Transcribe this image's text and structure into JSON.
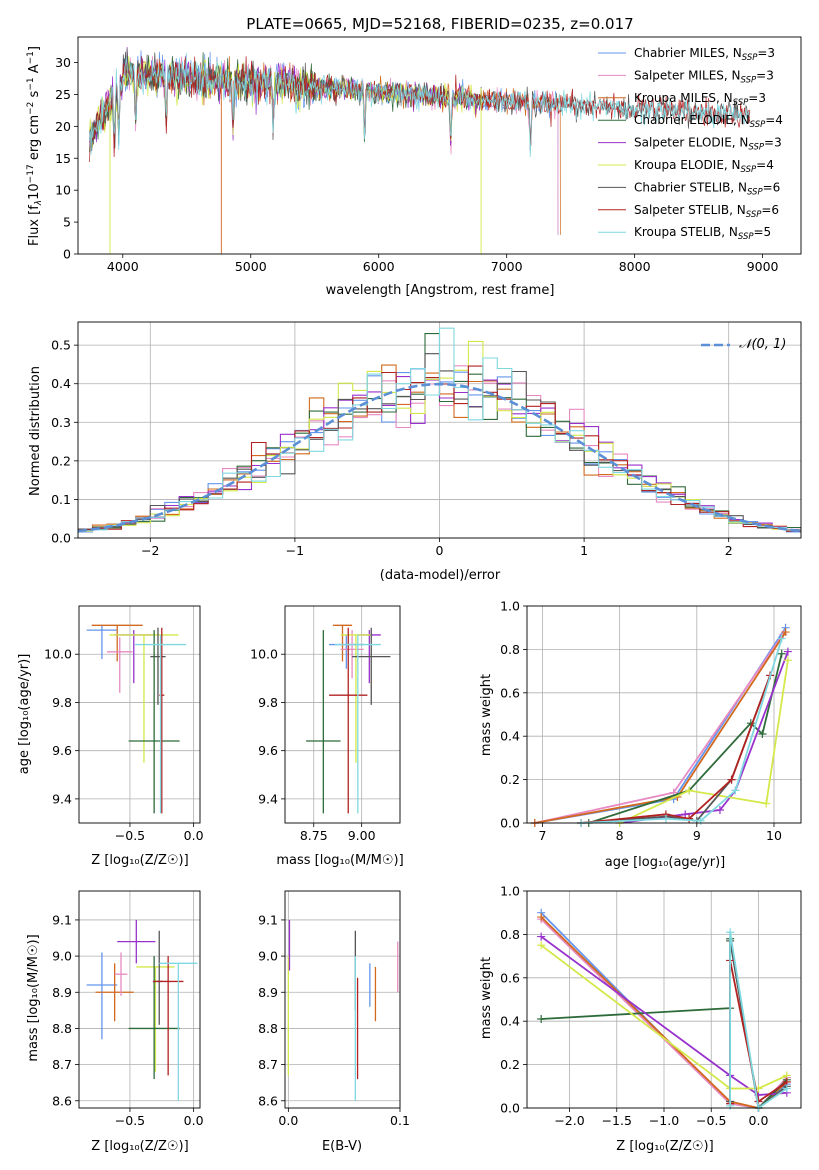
{
  "chart_data": [
    {
      "id": "spectrum",
      "type": "line",
      "title": "PLATE=0665, MJD=52168, FIBERID=0235, z=0.017",
      "xlabel": "wavelength [Angstrom, rest frame]",
      "ylabel": "Flux [f$_\\lambda$10$^{-17}$ erg cm$^{-2}$ s$^{-1}$ A$^{-1}$]",
      "ylabel_parts": {
        "a": "Flux [f",
        "b": "λ",
        "c": "10",
        "d": "−17",
        "e": " erg cm",
        "f": "−2",
        "g": " s",
        "h": "−1",
        "i": " A",
        "j": "−1",
        "k": "]"
      },
      "xlim": [
        3650,
        9300
      ],
      "ylim": [
        0,
        34
      ],
      "xticks": [
        4000,
        5000,
        6000,
        7000,
        8000,
        9000
      ],
      "yticks": [
        0,
        5,
        10,
        15,
        20,
        25,
        30
      ],
      "grid": false,
      "legend_position": "upper-right",
      "series": [
        {
          "name": "Chabrier MILES, NSSP=3",
          "label": "Chabrier MILES, N",
          "sub": "SSP",
          "suffix": "=3",
          "color": "#6495ed",
          "x_range": [
            3740,
            7400
          ]
        },
        {
          "name": "Salpeter MILES, NSSP=3",
          "label": "Salpeter MILES, N",
          "sub": "SSP",
          "suffix": "=3",
          "color": "#e78ac3",
          "x_range": [
            3740,
            7400
          ]
        },
        {
          "name": "Kroupa MILES, NSSP=3",
          "label": "Kroupa MILES, N",
          "sub": "SSP",
          "suffix": "=3",
          "color": "#d2691e",
          "x_range": [
            3740,
            7420
          ]
        },
        {
          "name": "Chabrier ELODIE, NSSP=4",
          "label": "Chabrier ELODIE, N",
          "sub": "SSP",
          "suffix": "=4",
          "color": "#2e6b3a",
          "x_range": [
            3740,
            6800
          ]
        },
        {
          "name": "Salpeter ELODIE, NSSP=3",
          "label": "Salpeter ELODIE, N",
          "sub": "SSP",
          "suffix": "=3",
          "color": "#9932cc",
          "x_range": [
            3740,
            6800
          ]
        },
        {
          "name": "Kroupa ELODIE, NSSP=4",
          "label": "Kroupa ELODIE, N",
          "sub": "SSP",
          "suffix": "=4",
          "color": "#d4e84a",
          "x_range": [
            3740,
            6800
          ]
        },
        {
          "name": "Chabrier STELIB, NSSP=6",
          "label": "Chabrier STELIB, N",
          "sub": "SSP",
          "suffix": "=6",
          "color": "#555555",
          "x_range": [
            3740,
            8900
          ]
        },
        {
          "name": "Salpeter STELIB, NSSP=6",
          "label": "Salpeter STELIB, N",
          "sub": "SSP",
          "suffix": "=6",
          "color": "#b22222",
          "x_range": [
            3740,
            8900
          ]
        },
        {
          "name": "Kroupa STELIB, NSSP=5",
          "label": "Kroupa STELIB, N",
          "sub": "SSP",
          "suffix": "=5",
          "color": "#7fd8e0",
          "x_range": [
            3740,
            8900
          ]
        }
      ]
    },
    {
      "id": "residuals",
      "type": "histogram",
      "xlabel": "(data-model)/error",
      "ylabel": "Normed distribution",
      "xlim": [
        -2.5,
        2.5
      ],
      "ylim": [
        0,
        0.56
      ],
      "xticks": [
        -2,
        -1,
        0,
        1,
        2
      ],
      "yticks": [
        0.0,
        0.1,
        0.2,
        0.3,
        0.4,
        0.5
      ],
      "grid": true,
      "legend_position": "upper-right",
      "gaussian_label": "𝒩(0, 1)",
      "gaussian_color": "#5b8fd6"
    },
    {
      "id": "age-vs-z",
      "type": "scatter",
      "xlabel": "Z [log₁₀(Z/Z☉)]",
      "ylabel": "age  [log₁₀(age/yr)]",
      "xlim": [
        -0.9,
        0.05
      ],
      "ylim": [
        9.3,
        10.2
      ],
      "xticks": [
        -0.5,
        0.0
      ],
      "yticks": [
        9.4,
        9.6,
        9.8,
        10.0
      ],
      "grid": true,
      "points": [
        {
          "color": "#6495ed",
          "x": -0.72,
          "y": 10.1,
          "xerr": 0.12,
          "yerr_low": 0.12,
          "yerr_high": 0.02
        },
        {
          "color": "#d2691e",
          "x": -0.6,
          "y": 10.12,
          "xerr": 0.2,
          "yerr_low": 0.15,
          "yerr_high": 0.0
        },
        {
          "color": "#e78ac3",
          "x": -0.58,
          "y": 10.01,
          "xerr": 0.1,
          "yerr_low": 0.17,
          "yerr_high": 0.06
        },
        {
          "color": "#9932cc",
          "x": -0.47,
          "y": 10.08,
          "xerr": 0.15,
          "yerr_low": 0.2,
          "yerr_high": 0.02
        },
        {
          "color": "#d4e84a",
          "x": -0.39,
          "y": 10.08,
          "xerr": 0.27,
          "yerr_low": 0.53,
          "yerr_high": 0.0
        },
        {
          "color": "#555555",
          "x": -0.28,
          "y": 9.99,
          "xerr": 0.06,
          "yerr_low": 0.2,
          "yerr_high": 0.12
        },
        {
          "color": "#2e6b3a",
          "x": -0.31,
          "y": 9.64,
          "xerr": 0.2,
          "yerr_low": 0.3,
          "yerr_high": 0.46
        },
        {
          "color": "#b22222",
          "x": -0.25,
          "y": 9.83,
          "xerr": 0.02,
          "yerr_low": 0.49,
          "yerr_high": 0.28
        },
        {
          "color": "#7fd8e0",
          "x": -0.26,
          "y": 10.04,
          "xerr": 0.2,
          "yerr_low": 0.7,
          "yerr_high": 0.04
        }
      ]
    },
    {
      "id": "age-vs-mass",
      "type": "scatter",
      "xlabel": "mass [log₁₀(M/M☉)]",
      "ylabel": "",
      "xlim": [
        8.6,
        9.2
      ],
      "ylim": [
        9.3,
        10.2
      ],
      "xticks": [
        8.75,
        9.0
      ],
      "yticks": [
        9.4,
        9.6,
        9.8,
        10.0
      ],
      "grid": true,
      "points": [
        {
          "color": "#6495ed",
          "x": 8.92,
          "y": 10.04,
          "xerr": 0.09,
          "yerr_low": 0.1,
          "yerr_high": 0.04
        },
        {
          "color": "#d2691e",
          "x": 8.9,
          "y": 10.12,
          "xerr": 0.05,
          "yerr_low": 0.15,
          "yerr_high": 0.0
        },
        {
          "color": "#e78ac3",
          "x": 8.95,
          "y": 10.02,
          "xerr": 0.06,
          "yerr_low": 0.12,
          "yerr_high": 0.08
        },
        {
          "color": "#9932cc",
          "x": 9.04,
          "y": 10.08,
          "xerr": 0.06,
          "yerr_low": 0.2,
          "yerr_high": 0.02
        },
        {
          "color": "#d4e84a",
          "x": 8.97,
          "y": 10.08,
          "xerr": 0.08,
          "yerr_low": 0.53,
          "yerr_high": 0.0
        },
        {
          "color": "#555555",
          "x": 9.05,
          "y": 9.99,
          "xerr": 0.1,
          "yerr_low": 0.2,
          "yerr_high": 0.12
        },
        {
          "color": "#2e6b3a",
          "x": 8.8,
          "y": 9.64,
          "xerr": 0.09,
          "yerr_low": 0.3,
          "yerr_high": 0.46
        },
        {
          "color": "#b22222",
          "x": 8.93,
          "y": 9.83,
          "xerr": 0.1,
          "yerr_low": 0.49,
          "yerr_high": 0.28
        },
        {
          "color": "#7fd8e0",
          "x": 8.98,
          "y": 10.04,
          "xerr": 0.12,
          "yerr_low": 0.7,
          "yerr_high": 0.04
        }
      ]
    },
    {
      "id": "mass-weight-vs-age",
      "type": "line",
      "xlabel": "age  [log₁₀(age/yr)]",
      "ylabel": "mass weight",
      "xlim": [
        6.8,
        10.35
      ],
      "ylim": [
        0,
        1
      ],
      "xticks": [
        7,
        8,
        9,
        10
      ],
      "yticks": [
        0.0,
        0.2,
        0.4,
        0.6,
        0.8,
        1.0
      ],
      "grid": true,
      "series": [
        {
          "color": "#6495ed",
          "x": [
            6.9,
            8.7,
            10.15
          ],
          "y": [
            0.0,
            0.11,
            0.9
          ]
        },
        {
          "color": "#e78ac3",
          "x": [
            6.9,
            8.7,
            10.12
          ],
          "y": [
            0.0,
            0.14,
            0.87
          ]
        },
        {
          "color": "#d2691e",
          "x": [
            6.9,
            8.75,
            10.15
          ],
          "y": [
            0.0,
            0.12,
            0.88
          ]
        },
        {
          "color": "#2e6b3a",
          "x": [
            7.6,
            8.9,
            9.7,
            9.85,
            10.1
          ],
          "y": [
            0.0,
            0.15,
            0.46,
            0.41,
            0.78
          ]
        },
        {
          "color": "#9932cc",
          "x": [
            8.0,
            8.85,
            9.3,
            9.5,
            10.18
          ],
          "y": [
            0.0,
            0.04,
            0.06,
            0.15,
            0.79
          ]
        },
        {
          "color": "#d4e84a",
          "x": [
            8.0,
            8.9,
            9.9,
            10.18
          ],
          "y": [
            0.0,
            0.15,
            0.09,
            0.75
          ]
        },
        {
          "color": "#555555",
          "x": [
            7.5,
            8.6,
            9.0,
            9.45,
            9.95
          ],
          "y": [
            0.0,
            0.03,
            0.01,
            0.2,
            0.68
          ]
        },
        {
          "color": "#b22222",
          "x": [
            7.5,
            8.6,
            8.9,
            9.45,
            9.95
          ],
          "y": [
            0.0,
            0.04,
            0.02,
            0.2,
            0.68
          ]
        },
        {
          "color": "#7fd8e0",
          "x": [
            7.5,
            8.6,
            9.05,
            9.5,
            10.1
          ],
          "y": [
            0.0,
            0.02,
            0.01,
            0.15,
            0.85
          ]
        }
      ]
    },
    {
      "id": "mass-vs-z",
      "type": "scatter",
      "xlabel": "Z [log₁₀(Z/Z☉)]",
      "ylabel": "mass [log₁₀(M/M☉)]",
      "xlim": [
        -0.9,
        0.05
      ],
      "ylim": [
        8.58,
        9.18
      ],
      "xticks": [
        -0.5,
        0.0
      ],
      "yticks": [
        8.6,
        8.7,
        8.8,
        8.9,
        9.0,
        9.1
      ],
      "grid": true,
      "points": [
        {
          "color": "#6495ed",
          "x": -0.72,
          "y": 8.92,
          "xerr": 0.12,
          "yerr_low": 0.15,
          "yerr_high": 0.09
        },
        {
          "color": "#d2691e",
          "x": -0.62,
          "y": 8.9,
          "xerr": 0.15,
          "yerr_low": 0.08,
          "yerr_high": 0.08
        },
        {
          "color": "#e78ac3",
          "x": -0.57,
          "y": 8.95,
          "xerr": 0.05,
          "yerr_low": 0.06,
          "yerr_high": 0.06
        },
        {
          "color": "#9932cc",
          "x": -0.45,
          "y": 9.04,
          "xerr": 0.15,
          "yerr_low": 0.06,
          "yerr_high": 0.06
        },
        {
          "color": "#d4e84a",
          "x": -0.3,
          "y": 8.97,
          "xerr": 0.15,
          "yerr_low": 0.29,
          "yerr_high": 0.0
        },
        {
          "color": "#555555",
          "x": -0.27,
          "y": 8.93,
          "xerr": 0.03,
          "yerr_low": 0.12,
          "yerr_high": 0.14
        },
        {
          "color": "#2e6b3a",
          "x": -0.31,
          "y": 8.8,
          "xerr": 0.2,
          "yerr_low": 0.14,
          "yerr_high": 0.2
        },
        {
          "color": "#b22222",
          "x": -0.2,
          "y": 8.93,
          "xerr": 0.12,
          "yerr_low": 0.26,
          "yerr_high": 0.07
        },
        {
          "color": "#7fd8e0",
          "x": -0.12,
          "y": 8.98,
          "xerr": 0.15,
          "yerr_low": 0.38,
          "yerr_high": 0.0
        }
      ]
    },
    {
      "id": "mass-vs-ebv",
      "type": "scatter",
      "xlabel": "E(B-V)",
      "ylabel": "",
      "xlim": [
        -0.003,
        0.1
      ],
      "ylim": [
        8.58,
        9.18
      ],
      "xticks": [
        0.0,
        0.1
      ],
      "yticks": [
        8.6,
        8.7,
        8.8,
        8.9,
        9.0,
        9.1
      ],
      "grid": true,
      "points": [
        {
          "color": "#d4e84a",
          "x": 0.0,
          "y": 8.85,
          "yerr_low": 0.18,
          "yerr_high": 0.15
        },
        {
          "color": "#9932cc",
          "x": 0.001,
          "y": 9.03,
          "yerr_low": 0.07,
          "yerr_high": 0.07
        },
        {
          "color": "#555555",
          "x": 0.06,
          "y": 8.95,
          "yerr_low": 0.1,
          "yerr_high": 0.12
        },
        {
          "color": "#7fd8e0",
          "x": 0.06,
          "y": 8.8,
          "yerr_low": 0.2,
          "yerr_high": 0.2
        },
        {
          "color": "#b22222",
          "x": 0.062,
          "y": 8.8,
          "yerr_low": 0.14,
          "yerr_high": 0.14
        },
        {
          "color": "#6495ed",
          "x": 0.073,
          "y": 8.92,
          "yerr_low": 0.06,
          "yerr_high": 0.06
        },
        {
          "color": "#d2691e",
          "x": 0.078,
          "y": 8.9,
          "yerr_low": 0.08,
          "yerr_high": 0.07
        },
        {
          "color": "#e78ac3",
          "x": 0.098,
          "y": 8.97,
          "yerr_low": 0.07,
          "yerr_high": 0.07
        }
      ]
    },
    {
      "id": "mass-weight-vs-z",
      "type": "line",
      "xlabel": "Z [log₁₀(Z/Z☉)]",
      "ylabel": "mass weight",
      "xlim": [
        -2.45,
        0.45
      ],
      "ylim": [
        0,
        1
      ],
      "xticks": [
        -2.0,
        -1.5,
        -1.0,
        -0.5,
        0.0
      ],
      "yticks": [
        0.0,
        0.2,
        0.4,
        0.6,
        0.8,
        1.0
      ],
      "grid": true,
      "series": [
        {
          "color": "#6495ed",
          "x": [
            -2.3,
            -0.3,
            0.0,
            0.3
          ],
          "y": [
            0.9,
            0.02,
            0.0,
            0.11
          ]
        },
        {
          "color": "#e78ac3",
          "x": [
            -2.3,
            -0.3,
            0.0,
            0.3
          ],
          "y": [
            0.87,
            0.02,
            0.0,
            0.14
          ]
        },
        {
          "color": "#d2691e",
          "x": [
            -2.3,
            -0.3,
            0.0,
            0.3
          ],
          "y": [
            0.88,
            0.03,
            0.0,
            0.12
          ]
        },
        {
          "color": "#2e6b3a",
          "x": [
            -2.3,
            -0.3,
            -0.3,
            0.0,
            0.3
          ],
          "y": [
            0.41,
            0.46,
            0.78,
            0.0,
            0.13
          ]
        },
        {
          "color": "#9932cc",
          "x": [
            -2.3,
            -0.3,
            0.0,
            0.3
          ],
          "y": [
            0.79,
            0.15,
            0.06,
            0.07
          ]
        },
        {
          "color": "#d4e84a",
          "x": [
            -2.3,
            -0.3,
            0.0,
            0.3
          ],
          "y": [
            0.75,
            0.09,
            0.09,
            0.15
          ]
        },
        {
          "color": "#555555",
          "x": [
            -0.3,
            -0.3,
            0.0,
            0.3
          ],
          "y": [
            0.03,
            0.77,
            0.0,
            0.1
          ]
        },
        {
          "color": "#b22222",
          "x": [
            -0.3,
            -0.3,
            0.0,
            0.3
          ],
          "y": [
            0.02,
            0.68,
            0.03,
            0.12
          ]
        },
        {
          "color": "#7fd8e0",
          "x": [
            -0.3,
            -0.3,
            0.0,
            0.3
          ],
          "y": [
            0.01,
            0.81,
            0.0,
            0.09
          ]
        }
      ]
    }
  ]
}
